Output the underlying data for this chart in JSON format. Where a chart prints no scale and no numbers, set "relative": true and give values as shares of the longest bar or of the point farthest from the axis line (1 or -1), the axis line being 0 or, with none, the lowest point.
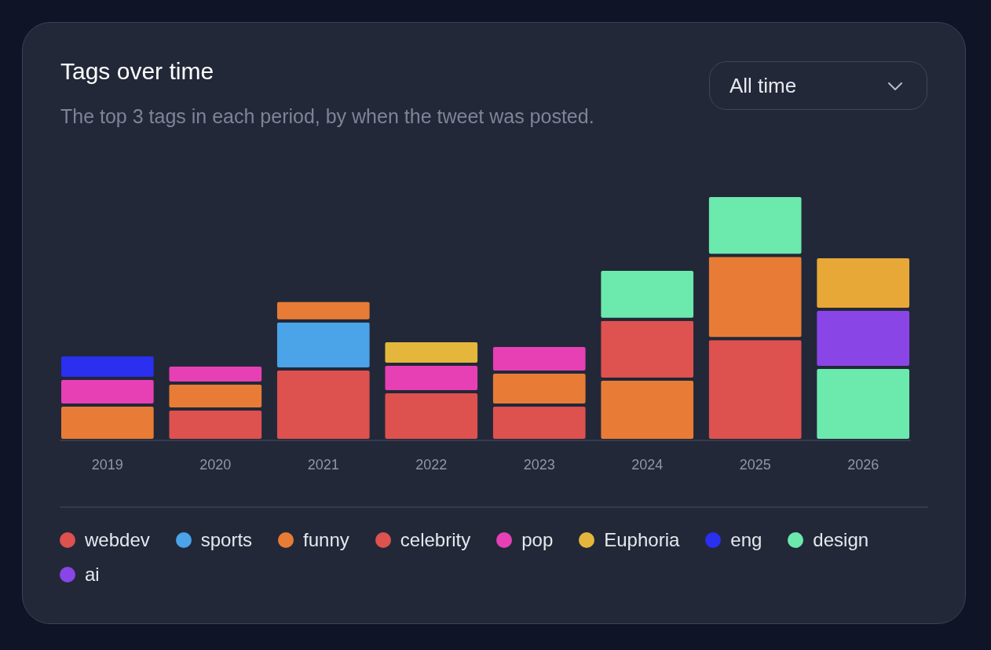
{
  "chart_data": {
    "type": "bar",
    "title": "Tags over time",
    "subtitle": "The top 3 tags in each period, by when the tweet was posted.",
    "annotations": [
      "All time"
    ],
    "relative": true,
    "stacked": true,
    "legend": "bottom",
    "categories": [
      "2019",
      "2020",
      "2021",
      "2022",
      "2023",
      "2024",
      "2025",
      "2026"
    ],
    "series": [
      {
        "name": "webdev",
        "color": "#dd514f",
        "values": [
          null,
          0.128,
          0.292,
          0.199,
          0.144,
          null,
          0.416,
          null
        ]
      },
      {
        "name": "sports",
        "color": "#4ba3e8",
        "values": [
          null,
          null,
          0.196,
          null,
          null,
          null,
          null,
          null
        ]
      },
      {
        "name": "funny",
        "color": "#e87c36",
        "values": [
          0.144,
          0.106,
          0.083,
          null,
          0.135,
          0.25,
          0.34,
          null
        ]
      },
      {
        "name": "celebrity",
        "color": "#de524f",
        "values": [
          null,
          null,
          null,
          null,
          null,
          0.244,
          null,
          null
        ]
      },
      {
        "name": "pop",
        "color": "#e640b4",
        "values": [
          0.109,
          0.074,
          null,
          0.112,
          0.109,
          null,
          null,
          null
        ]
      },
      {
        "name": "Euphoria",
        "color": "#e4b73c",
        "values": [
          null,
          null,
          null,
          0.096,
          null,
          null,
          null,
          null
        ]
      },
      {
        "name": "eng",
        "color": "#2a2ff0",
        "values": [
          0.096,
          null,
          null,
          null,
          null,
          null,
          null,
          null
        ]
      },
      {
        "name": "design",
        "color": "#6ce9ac",
        "values": [
          null,
          null,
          null,
          null,
          null,
          0.205,
          0.244,
          0.298
        ]
      },
      {
        "name": "ai",
        "color": "#8a45e6",
        "values": [
          null,
          null,
          null,
          null,
          null,
          null,
          null,
          0.237
        ]
      },
      {
        "color": "#e8a838",
        "values": [
          null,
          null,
          null,
          null,
          null,
          null,
          null,
          0.215
        ]
      }
    ]
  }
}
